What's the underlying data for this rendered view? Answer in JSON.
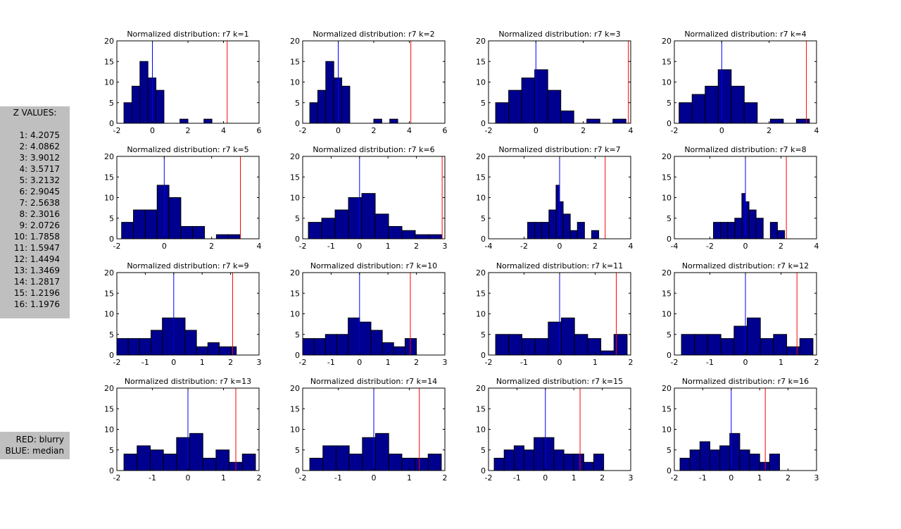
{
  "zpanel": {
    "title": "Z VALUES:",
    "rows": [
      "1: 4.2075",
      "2: 4.0862",
      "3: 3.9012",
      "4: 3.5717",
      "5: 3.2132",
      "6: 2.9045",
      "7: 2.5638",
      "8: 2.3016",
      "9: 2.0726",
      "10: 1.7858",
      "11: 1.5947",
      "12: 1.4494",
      "13: 1.3469",
      "14: 1.2817",
      "15: 1.2196",
      "16: 1.1976"
    ]
  },
  "legend": {
    "red_label": "RED: blurry",
    "blue_label": "BLUE: median"
  },
  "colors": {
    "bar_fill": "#00008f",
    "median_line": "#0000ff",
    "blurry_line": "#ff0000",
    "panel_bg": "#bfbfbf"
  },
  "chart_data": [
    {
      "type": "bar",
      "title": "Normalized distribution: r7 k=1",
      "xlim": [
        -2,
        6
      ],
      "xticks": [
        "-2",
        "0",
        "2",
        "4",
        "6"
      ],
      "ylim": [
        0,
        20
      ],
      "yticks": [
        "0",
        "5",
        "10",
        "15",
        "20"
      ],
      "bin_edges": [
        -1.6,
        -1.15,
        -0.7,
        -0.25,
        0.2,
        0.65,
        1.1,
        1.55,
        2,
        2.45,
        2.9,
        3.35,
        3.8,
        4.25
      ],
      "counts": [
        5,
        9,
        15,
        11,
        8,
        0,
        0,
        1,
        0,
        0,
        1,
        0,
        0
      ],
      "median": 0,
      "blurry": 4.2075
    },
    {
      "type": "bar",
      "title": "Normalized distribution: r7 k=2",
      "xlim": [
        -2,
        6
      ],
      "xticks": [
        "-2",
        "0",
        "2",
        "4",
        "6"
      ],
      "ylim": [
        0,
        20
      ],
      "yticks": [
        "0",
        "5",
        "10",
        "15",
        "20"
      ],
      "bin_edges": [
        -1.6,
        -1.15,
        -0.7,
        -0.25,
        0.2,
        0.65,
        1.1,
        1.55,
        2,
        2.45,
        2.9,
        3.35,
        3.8,
        4.25
      ],
      "counts": [
        5,
        8,
        15,
        11,
        9,
        0,
        0,
        0,
        1,
        0,
        1,
        0,
        0
      ],
      "median": 0,
      "blurry": 4.0862
    },
    {
      "type": "bar",
      "title": "Normalized distribution: r7 k=3",
      "xlim": [
        -2,
        4
      ],
      "xticks": [
        "-2",
        "0",
        "2",
        "4"
      ],
      "ylim": [
        0,
        20
      ],
      "yticks": [
        "0",
        "5",
        "10",
        "15",
        "20"
      ],
      "bin_edges": [
        -1.7,
        -1.15,
        -0.6,
        -0.05,
        0.5,
        1.05,
        1.6,
        2.15,
        2.7,
        3.25,
        3.8
      ],
      "counts": [
        5,
        8,
        11,
        13,
        8,
        3,
        0,
        1,
        0,
        1
      ],
      "median": 0,
      "blurry": 3.9012
    },
    {
      "type": "bar",
      "title": "Normalized distribution: r7 k=4",
      "xlim": [
        -2,
        4
      ],
      "xticks": [
        "-2",
        "0",
        "2",
        "4"
      ],
      "ylim": [
        0,
        20
      ],
      "yticks": [
        "0",
        "5",
        "10",
        "15",
        "20"
      ],
      "bin_edges": [
        -1.8,
        -1.25,
        -0.7,
        -0.15,
        0.4,
        0.95,
        1.5,
        2.05,
        2.6,
        3.15,
        3.7
      ],
      "counts": [
        5,
        7,
        9,
        13,
        9,
        5,
        0,
        1,
        0,
        1
      ],
      "median": 0,
      "blurry": 3.5717
    },
    {
      "type": "bar",
      "title": "Normalized distribution: r7 k=5",
      "xlim": [
        -2,
        4
      ],
      "xticks": [
        "-2",
        "0",
        "2",
        "4"
      ],
      "ylim": [
        0,
        20
      ],
      "yticks": [
        "0",
        "5",
        "10",
        "15",
        "20"
      ],
      "bin_edges": [
        -1.8,
        -1.3,
        -0.8,
        -0.3,
        0.2,
        0.7,
        1.2,
        1.7,
        2.2,
        2.7,
        3.2
      ],
      "counts": [
        4,
        7,
        7,
        13,
        10,
        3,
        3,
        0,
        1,
        1
      ],
      "median": 0,
      "blurry": 3.2132
    },
    {
      "type": "bar",
      "title": "Normalized distribution: r7 k=6",
      "xlim": [
        -2,
        3
      ],
      "xticks": [
        "-2",
        "-1",
        "0",
        "1",
        "2",
        "3"
      ],
      "ylim": [
        0,
        20
      ],
      "yticks": [
        "0",
        "5",
        "10",
        "15",
        "20"
      ],
      "bin_edges": [
        -1.8,
        -1.33,
        -0.86,
        -0.39,
        0.08,
        0.55,
        1.02,
        1.49,
        1.96,
        2.43,
        2.9
      ],
      "counts": [
        4,
        5,
        7,
        10,
        11,
        6,
        3,
        2,
        1,
        1
      ],
      "median": 0,
      "blurry": 2.9045
    },
    {
      "type": "bar",
      "title": "Normalized distribution: r7 k=7",
      "xlim": [
        -4,
        4
      ],
      "xticks": [
        "-4",
        "-2",
        "0",
        "2",
        "4"
      ],
      "ylim": [
        0,
        20
      ],
      "yticks": [
        "0",
        "5",
        "10",
        "15",
        "20"
      ],
      "bin_edges": [
        -1.8,
        -1.4,
        -1,
        -0.6,
        -0.2,
        0,
        0.2,
        0.6,
        1,
        1.4,
        1.8,
        2.2,
        2.6
      ],
      "counts": [
        4,
        4,
        4,
        7,
        13,
        9,
        6,
        2,
        4,
        0,
        2,
        0
      ],
      "median": 0,
      "blurry": 2.5638
    },
    {
      "type": "bar",
      "title": "Normalized distribution: r7 k=8",
      "xlim": [
        -4,
        4
      ],
      "xticks": [
        "-4",
        "-2",
        "0",
        "2",
        "4"
      ],
      "ylim": [
        0,
        20
      ],
      "yticks": [
        "0",
        "5",
        "10",
        "15",
        "20"
      ],
      "bin_edges": [
        -1.8,
        -1.4,
        -1,
        -0.6,
        -0.2,
        0,
        0.2,
        0.6,
        1,
        1.4,
        1.8,
        2.2,
        2.6
      ],
      "counts": [
        4,
        4,
        4,
        5,
        11,
        9,
        7,
        5,
        0,
        4,
        2,
        0
      ],
      "median": 0,
      "blurry": 2.3016
    },
    {
      "type": "bar",
      "title": "Normalized distribution: r7 k=9",
      "xlim": [
        -2,
        3
      ],
      "xticks": [
        "-2",
        "-1",
        "0",
        "1",
        "2",
        "3"
      ],
      "ylim": [
        0,
        20
      ],
      "yticks": [
        "0",
        "5",
        "10",
        "15",
        "20"
      ],
      "bin_edges": [
        -2,
        -1.6,
        -1.2,
        -0.8,
        -0.4,
        0,
        0.4,
        0.8,
        1.2,
        1.6,
        2,
        2.2
      ],
      "counts": [
        4,
        4,
        4,
        6,
        9,
        9,
        6,
        2,
        3,
        2,
        2
      ],
      "median": 0,
      "blurry": 2.0726
    },
    {
      "type": "bar",
      "title": "Normalized distribution: r7 k=10",
      "xlim": [
        -2,
        3
      ],
      "xticks": [
        "-2",
        "-1",
        "0",
        "1",
        "2",
        "3"
      ],
      "ylim": [
        0,
        20
      ],
      "yticks": [
        "0",
        "5",
        "10",
        "15",
        "20"
      ],
      "bin_edges": [
        -2,
        -1.6,
        -1.2,
        -0.8,
        -0.4,
        0,
        0.4,
        0.8,
        1.2,
        1.6,
        2
      ],
      "counts": [
        4,
        4,
        5,
        5,
        9,
        8,
        6,
        3,
        2,
        4
      ],
      "median": 0,
      "blurry": 1.7858
    },
    {
      "type": "bar",
      "title": "Normalized distribution: r7 k=11",
      "xlim": [
        -2,
        2
      ],
      "xticks": [
        "-2",
        "-1",
        "0",
        "1",
        "2"
      ],
      "ylim": [
        0,
        20
      ],
      "yticks": [
        "0",
        "5",
        "10",
        "15",
        "20"
      ],
      "bin_edges": [
        -1.8,
        -1.43,
        -1.06,
        -0.69,
        -0.32,
        0.05,
        0.42,
        0.79,
        1.16,
        1.53,
        1.9
      ],
      "counts": [
        5,
        5,
        4,
        4,
        8,
        9,
        5,
        4,
        1,
        5
      ],
      "median": 0,
      "blurry": 1.5947
    },
    {
      "type": "bar",
      "title": "Normalized distribution: r7 k=12",
      "xlim": [
        -2,
        2
      ],
      "xticks": [
        "-2",
        "-1",
        "0",
        "1",
        "2"
      ],
      "ylim": [
        0,
        20
      ],
      "yticks": [
        "0",
        "5",
        "10",
        "15",
        "20"
      ],
      "bin_edges": [
        -1.8,
        -1.43,
        -1.06,
        -0.69,
        -0.32,
        0.05,
        0.42,
        0.79,
        1.16,
        1.53,
        1.9
      ],
      "counts": [
        5,
        5,
        5,
        4,
        7,
        9,
        4,
        5,
        2,
        4
      ],
      "median": 0,
      "blurry": 1.4494
    },
    {
      "type": "bar",
      "title": "Normalized distribution: r7 k=13",
      "xlim": [
        -2,
        2
      ],
      "xticks": [
        "-2",
        "-1",
        "0",
        "1",
        "2"
      ],
      "ylim": [
        0,
        20
      ],
      "yticks": [
        "0",
        "5",
        "10",
        "15",
        "20"
      ],
      "bin_edges": [
        -1.8,
        -1.43,
        -1.06,
        -0.69,
        -0.32,
        0.05,
        0.42,
        0.79,
        1.16,
        1.53,
        1.9
      ],
      "counts": [
        4,
        6,
        5,
        4,
        8,
        9,
        3,
        5,
        2,
        4
      ],
      "median": 0,
      "blurry": 1.3469
    },
    {
      "type": "bar",
      "title": "Normalized distribution: r7 k=14",
      "xlim": [
        -2,
        2
      ],
      "xticks": [
        "-2",
        "-1",
        "0",
        "1",
        "2"
      ],
      "ylim": [
        0,
        20
      ],
      "yticks": [
        "0",
        "5",
        "10",
        "15",
        "20"
      ],
      "bin_edges": [
        -1.8,
        -1.43,
        -1.06,
        -0.69,
        -0.32,
        0.05,
        0.42,
        0.79,
        1.16,
        1.53,
        1.9
      ],
      "counts": [
        3,
        6,
        6,
        4,
        8,
        9,
        4,
        3,
        3,
        4
      ],
      "median": 0,
      "blurry": 1.2817
    },
    {
      "type": "bar",
      "title": "Normalized distribution: r7 k=15",
      "xlim": [
        -2,
        3
      ],
      "xticks": [
        "-2",
        "-1",
        "0",
        "1",
        "2",
        "3"
      ],
      "ylim": [
        0,
        20
      ],
      "yticks": [
        "0",
        "5",
        "10",
        "15",
        "20"
      ],
      "bin_edges": [
        -1.8,
        -1.45,
        -1.1,
        -0.75,
        -0.4,
        -0.05,
        0.3,
        0.65,
        1,
        1.35,
        1.7,
        2.05
      ],
      "counts": [
        3,
        5,
        6,
        5,
        8,
        8,
        5,
        4,
        4,
        2,
        4
      ],
      "median": 0,
      "blurry": 1.2196
    },
    {
      "type": "bar",
      "title": "Normalized distribution: r7 k=16",
      "xlim": [
        -2,
        3
      ],
      "xticks": [
        "-2",
        "-1",
        "0",
        "1",
        "2",
        "3"
      ],
      "ylim": [
        0,
        20
      ],
      "yticks": [
        "0",
        "5",
        "10",
        "15",
        "20"
      ],
      "bin_edges": [
        -1.8,
        -1.45,
        -1.1,
        -0.75,
        -0.4,
        -0.05,
        0.3,
        0.65,
        1,
        1.35,
        1.7,
        2.05
      ],
      "counts": [
        3,
        5,
        7,
        5,
        6,
        9,
        5,
        4,
        2,
        4,
        0
      ],
      "median": 0,
      "blurry": 1.1976
    }
  ]
}
